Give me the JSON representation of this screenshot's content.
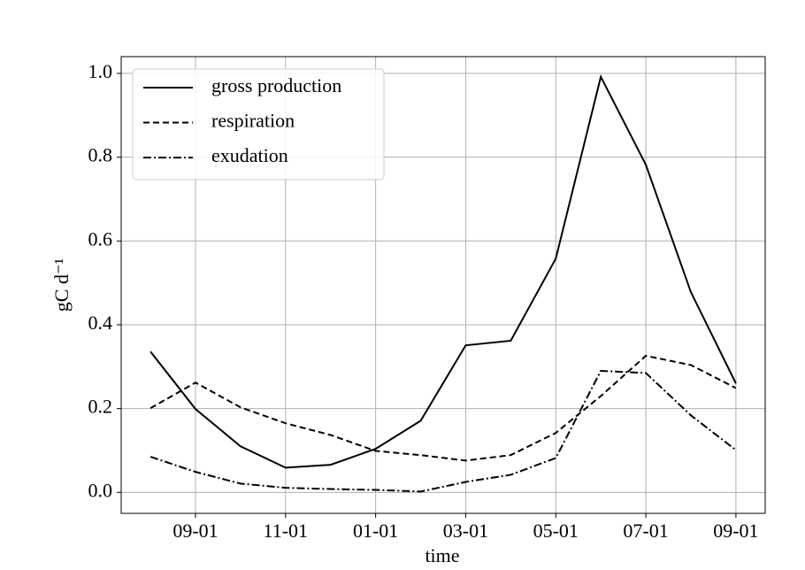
{
  "chart_data": {
    "type": "line",
    "xlabel": "time",
    "ylabel": "gC d⁻¹",
    "categories": [
      null,
      "09-01",
      null,
      "11-01",
      null,
      "01-01",
      null,
      "03-01",
      null,
      "05-01",
      null,
      "07-01",
      null,
      "09-01"
    ],
    "series": [
      {
        "name": "gross production",
        "color": "#000000",
        "linestyle": "solid",
        "values": [
          0.336,
          0.199,
          0.11,
          0.059,
          0.066,
          0.104,
          0.171,
          0.351,
          0.362,
          0.558,
          0.992,
          0.782,
          0.478,
          0.26
        ]
      },
      {
        "name": "respiration",
        "color": "#000000",
        "linestyle": "dashed",
        "values": [
          0.201,
          0.262,
          0.203,
          0.165,
          0.137,
          0.099,
          0.089,
          0.076,
          0.089,
          0.142,
          0.23,
          0.326,
          0.304,
          0.249
        ]
      },
      {
        "name": "exudation",
        "color": "#000000",
        "linestyle": "dashdot",
        "values": [
          0.085,
          0.049,
          0.021,
          0.011,
          0.008,
          0.006,
          0.002,
          0.025,
          0.042,
          0.082,
          0.29,
          0.285,
          0.184,
          0.101
        ]
      }
    ],
    "ylim": [
      -0.05,
      1.04
    ],
    "yticks": [
      {
        "value": 0,
        "label": "0.0"
      },
      {
        "value": 0.2,
        "label": "0.2"
      },
      {
        "value": 0.4,
        "label": "0.4"
      },
      {
        "value": 0.6,
        "label": "0.6"
      },
      {
        "value": 0.8,
        "label": "0.8"
      },
      {
        "value": 1,
        "label": "1.0"
      }
    ],
    "grid": true,
    "legend": "upper left"
  }
}
